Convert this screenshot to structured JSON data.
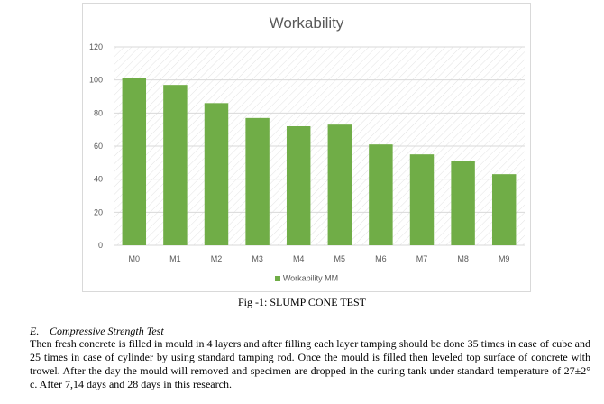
{
  "chart_data": {
    "type": "bar",
    "title": "Workability",
    "categories": [
      "M0",
      "M1",
      "M2",
      "M3",
      "M4",
      "M5",
      "M6",
      "M7",
      "M8",
      "M9"
    ],
    "series": [
      {
        "name": "Workability MM",
        "values": [
          101,
          97,
          86,
          77,
          72,
          73,
          61,
          55,
          51,
          43
        ]
      }
    ],
    "ylim": [
      0,
      120
    ],
    "yticks": [
      "0",
      "20",
      "40",
      "60",
      "80",
      "100",
      "120"
    ],
    "grid": true,
    "legend": "bottom",
    "bar_color": "#70ad47",
    "gridline_color": "#d9d9d9",
    "plot_pattern": "diagonal-hatch"
  },
  "caption": "Fig -1: SLUMP CONE TEST",
  "section": {
    "number": "E.",
    "title": "Compressive Strength Test"
  },
  "paragraph": "Then fresh concrete is filled in mould in 4 layers and after filling each layer tamping should be done 35 times in case of cube and 25 times in case of cylinder by using standard tamping rod. Once the mould is filled then leveled top surface of concrete with trowel. After the day the mould will removed and specimen are dropped in the curing tank under standard temperature of 27±2° c. After 7,14 days and 28 days in this research."
}
